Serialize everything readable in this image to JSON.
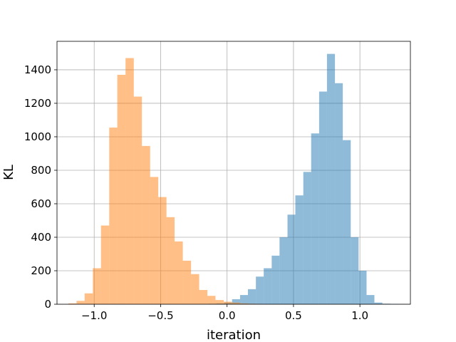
{
  "chart_data": {
    "type": "bar",
    "subtype": "histogram",
    "xlabel": "iteration",
    "ylabel": "KL",
    "xlim": [
      -1.28,
      1.38
    ],
    "ylim": [
      0,
      1570
    ],
    "x_ticks": [
      {
        "value": -1.0,
        "label": "−1.0"
      },
      {
        "value": -0.5,
        "label": "−0.5"
      },
      {
        "value": 0.0,
        "label": "0.0"
      },
      {
        "value": 0.5,
        "label": "0.5"
      },
      {
        "value": 1.0,
        "label": "1.0"
      }
    ],
    "y_ticks": [
      {
        "value": 0,
        "label": "0"
      },
      {
        "value": 200,
        "label": "200"
      },
      {
        "value": 400,
        "label": "400"
      },
      {
        "value": 600,
        "label": "600"
      },
      {
        "value": 800,
        "label": "800"
      },
      {
        "value": 1000,
        "label": "1000"
      },
      {
        "value": 1200,
        "label": "1200"
      },
      {
        "value": 1400,
        "label": "1400"
      }
    ],
    "grid": true,
    "series": [
      {
        "color": "#1f77b4",
        "opacity": 0.5,
        "bin_edges": [
          -0.2,
          -0.14,
          -0.081,
          -0.021,
          0.038,
          0.098,
          0.157,
          0.217,
          0.276,
          0.336,
          0.395,
          0.455,
          0.514,
          0.574,
          0.633,
          0.693,
          0.752,
          0.812,
          0.871,
          0.931,
          0.99,
          1.05,
          1.109,
          1.169,
          1.228,
          1.288,
          1.347
        ],
        "counts": [
          2,
          3,
          5,
          10,
          30,
          55,
          90,
          165,
          215,
          290,
          400,
          535,
          650,
          790,
          1020,
          1270,
          1495,
          1320,
          980,
          400,
          200,
          55,
          10,
          3,
          2,
          1
        ]
      },
      {
        "color": "#ff7f0e",
        "opacity": 0.5,
        "bin_edges": [
          -1.195,
          -1.133,
          -1.072,
          -1.01,
          -0.949,
          -0.887,
          -0.826,
          -0.764,
          -0.702,
          -0.641,
          -0.579,
          -0.518,
          -0.456,
          -0.395,
          -0.333,
          -0.271,
          -0.21,
          -0.148,
          -0.087,
          -0.025,
          0.036,
          0.098,
          0.159,
          0.221,
          0.283
        ],
        "counts": [
          5,
          20,
          65,
          215,
          470,
          1055,
          1370,
          1470,
          1240,
          945,
          760,
          640,
          520,
          375,
          260,
          180,
          85,
          50,
          25,
          15,
          10,
          5,
          3,
          2
        ]
      }
    ]
  }
}
